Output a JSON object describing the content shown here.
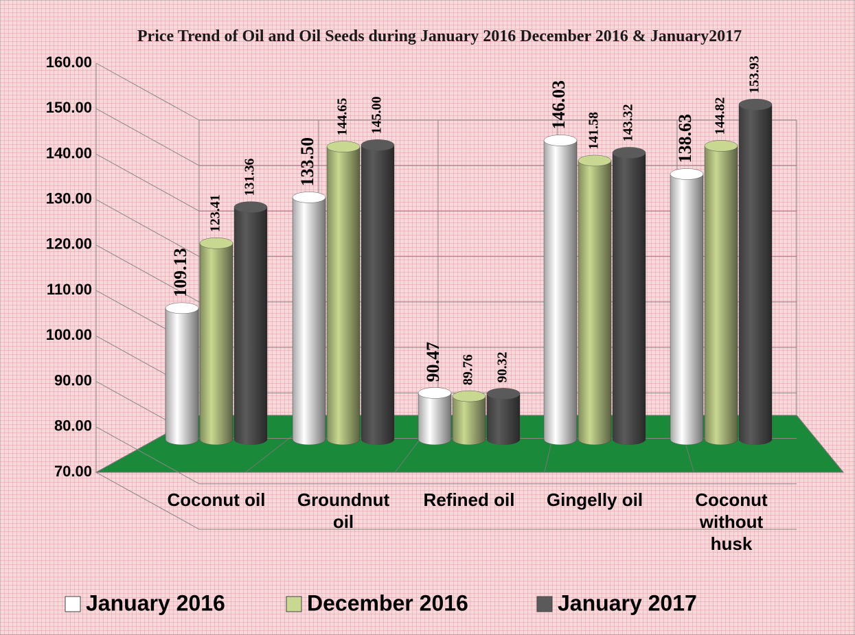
{
  "chart_data": {
    "type": "bar3d",
    "title": "Price Trend of Oil and Oil Seeds during  January 2016  December 2016 & January2017",
    "categories": [
      "Coconut oil",
      "Groundnut oil",
      "Refined oil",
      "Gingelly oil",
      "Coconut without husk"
    ],
    "series": [
      {
        "name": "January 2016",
        "color": "#ffffff",
        "values": [
          109.13,
          133.5,
          90.47,
          146.03,
          138.63
        ],
        "value_labels": [
          "109.13",
          "133.50",
          "90.47",
          "146.03",
          "138.63"
        ]
      },
      {
        "name": "December 2016",
        "color": "#c8d890",
        "values": [
          123.41,
          144.65,
          89.76,
          141.58,
          144.82
        ],
        "value_labels": [
          "123.41",
          "144.65",
          "89.76",
          "141.58",
          "144.82"
        ]
      },
      {
        "name": "January 2017",
        "color": "#5a5a5a",
        "values": [
          131.36,
          145,
          90.32,
          143.32,
          153.93
        ],
        "value_labels": [
          "131.36",
          "145.00",
          "90.32",
          "143.32",
          "153.93"
        ]
      }
    ],
    "ylim": [
      70,
      160
    ],
    "yticks": [
      {
        "value": 70,
        "label": "70.00"
      },
      {
        "value": 80,
        "label": "80.00"
      },
      {
        "value": 90,
        "label": "90.00"
      },
      {
        "value": 100,
        "label": "100.00"
      },
      {
        "value": 110,
        "label": "110.00"
      },
      {
        "value": 120,
        "label": "120.00"
      },
      {
        "value": 130,
        "label": "130.00"
      },
      {
        "value": 140,
        "label": "140.00"
      },
      {
        "value": 150,
        "label": "150.00"
      },
      {
        "value": 160,
        "label": "160.00"
      }
    ],
    "grid": true,
    "legend": "bottom"
  }
}
